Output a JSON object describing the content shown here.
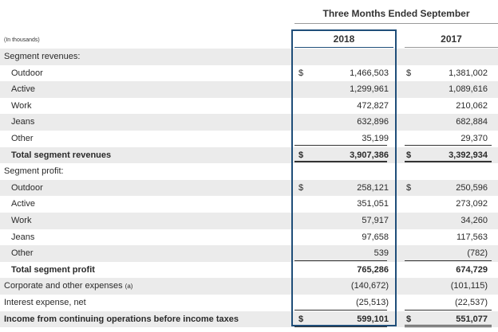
{
  "header": {
    "period": "Three Months Ended September",
    "year_current": "2018",
    "year_prior": "2017",
    "units": "(In thousands)"
  },
  "rows": [
    {
      "label": "Segment revenues:",
      "style": "section",
      "shade": true
    },
    {
      "label": "Outdoor",
      "style": "indent",
      "shade": false,
      "cur18": "$",
      "v18": "1,466,503",
      "cur17": "$",
      "v17": "1,381,002"
    },
    {
      "label": "Active",
      "style": "indent",
      "shade": true,
      "v18": "1,299,961",
      "v17": "1,089,616"
    },
    {
      "label": "Work",
      "style": "indent",
      "shade": false,
      "v18": "472,827",
      "v17": "210,062"
    },
    {
      "label": "Jeans",
      "style": "indent",
      "shade": true,
      "v18": "632,896",
      "v17": "682,884"
    },
    {
      "label": "Other",
      "style": "indent",
      "shade": false,
      "v18": "35,199",
      "v17": "29,370"
    },
    {
      "label": "Total segment revenues",
      "style": "indent-bold",
      "shade": true,
      "cur18": "$",
      "v18": "3,907,386",
      "cur17": "$",
      "v17": "3,392,934"
    },
    {
      "label": "Segment profit:",
      "style": "section",
      "shade": false
    },
    {
      "label": "Outdoor",
      "style": "indent",
      "shade": true,
      "cur18": "$",
      "v18": "258,121",
      "cur17": "$",
      "v17": "250,596"
    },
    {
      "label": "Active",
      "style": "indent",
      "shade": false,
      "v18": "351,051",
      "v17": "273,092"
    },
    {
      "label": "Work",
      "style": "indent",
      "shade": true,
      "v18": "57,917",
      "v17": "34,260"
    },
    {
      "label": "Jeans",
      "style": "indent",
      "shade": false,
      "v18": "97,658",
      "v17": "117,563"
    },
    {
      "label": "Other",
      "style": "indent",
      "shade": true,
      "v18": "539",
      "v17": "(782)"
    },
    {
      "label": "Total segment profit",
      "style": "indent-bold",
      "shade": false,
      "v18": "765,286",
      "v17": "674,729"
    },
    {
      "label": "Corporate and other expenses",
      "note": "(a)",
      "style": "section",
      "shade": true,
      "v18": "(140,672)",
      "v17": "(101,115)"
    },
    {
      "label": "Interest expense, net",
      "style": "section",
      "shade": false,
      "v18": "(25,513)",
      "v17": "(22,537)"
    },
    {
      "label": "Income from continuing operations before income taxes",
      "style": "section-bold",
      "shade": true,
      "cur18": "$",
      "v18": "599,101",
      "cur17": "$",
      "v17": "551,077"
    }
  ]
}
